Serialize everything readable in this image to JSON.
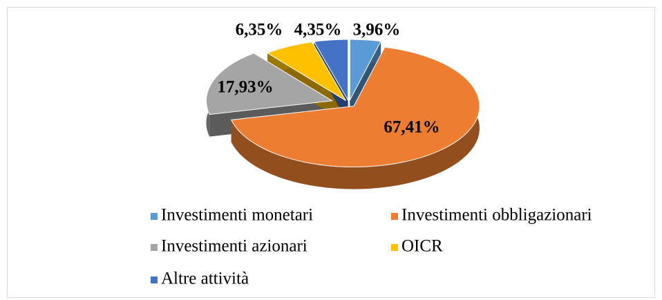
{
  "chart_data": {
    "type": "pie",
    "categories": [
      "Investimenti monetari",
      "Investimenti obbligazionari",
      "Investimenti azionari",
      "OICR",
      "Altre attività"
    ],
    "values": [
      3.96,
      67.41,
      17.93,
      6.35,
      4.35
    ],
    "value_labels": [
      "3,96%",
      "67,41%",
      "17,93%",
      "6,35%",
      "4,35%"
    ],
    "colors": [
      "#5b9bd5",
      "#ed7d31",
      "#a5a5a5",
      "#ffc000",
      "#4472c4"
    ],
    "legend": "bottom"
  }
}
